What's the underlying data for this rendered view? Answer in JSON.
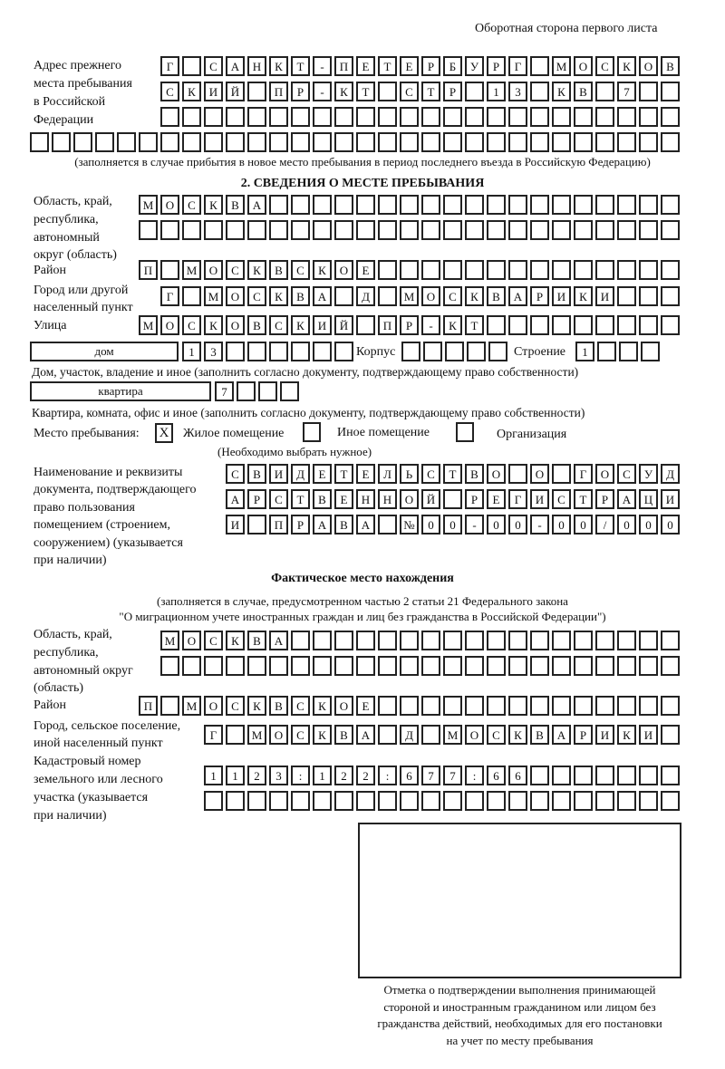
{
  "page_header": "Оборотная сторона первого листа",
  "previous_address": {
    "label": [
      "Адрес прежнего",
      "места пребывания",
      "в Российской",
      "Федерации"
    ],
    "rows": [
      [
        "Г",
        "",
        "С",
        "А",
        "Н",
        "К",
        "Т",
        "-",
        "П",
        "Е",
        "Т",
        "Е",
        "Р",
        "Б",
        "У",
        "Р",
        "Г",
        "",
        "М",
        "О",
        "С",
        "К",
        "О",
        "В"
      ],
      [
        "С",
        "К",
        "И",
        "Й",
        "",
        "П",
        "Р",
        "-",
        "К",
        "Т",
        "",
        "С",
        "Т",
        "Р",
        "",
        "1",
        "3",
        "",
        "К",
        "В",
        "",
        "7",
        "",
        ""
      ],
      [
        "",
        "",
        "",
        "",
        "",
        "",
        "",
        "",
        "",
        "",
        "",
        "",
        "",
        "",
        "",
        "",
        "",
        "",
        "",
        "",
        "",
        "",
        "",
        ""
      ],
      [
        "",
        "",
        "",
        "",
        "",
        "",
        "",
        "",
        "",
        "",
        "",
        "",
        "",
        "",
        "",
        "",
        "",
        "",
        "",
        "",
        "",
        "",
        "",
        "",
        "",
        "",
        "",
        "",
        "",
        ""
      ]
    ],
    "note": "(заполняется в случае прибытия в новое место пребывания в период последнего въезда в Российскую Федерацию)"
  },
  "section2": {
    "title": "2. СВЕДЕНИЯ О МЕСТЕ ПРЕБЫВАНИЯ",
    "region_label": [
      "Область, край,",
      "республика,",
      "автономный",
      "округ (область)"
    ],
    "region_rows": [
      [
        "М",
        "О",
        "С",
        "К",
        "В",
        "А",
        "",
        "",
        "",
        "",
        "",
        "",
        "",
        "",
        "",
        "",
        "",
        "",
        "",
        "",
        "",
        "",
        "",
        "",
        ""
      ],
      [
        "",
        "",
        "",
        "",
        "",
        "",
        "",
        "",
        "",
        "",
        "",
        "",
        "",
        "",
        "",
        "",
        "",
        "",
        "",
        "",
        "",
        "",
        "",
        "",
        ""
      ]
    ],
    "district_label": "Район",
    "district_row": [
      "П",
      "",
      "М",
      "О",
      "С",
      "К",
      "В",
      "С",
      "К",
      "О",
      "Е",
      "",
      "",
      "",
      "",
      "",
      "",
      "",
      "",
      "",
      "",
      "",
      "",
      "",
      ""
    ],
    "city_label": [
      "Город или другой",
      "населенный пункт"
    ],
    "city_row": [
      "Г",
      "",
      "М",
      "О",
      "С",
      "К",
      "В",
      "А",
      "",
      "Д",
      "",
      "М",
      "О",
      "С",
      "К",
      "В",
      "А",
      "Р",
      "И",
      "К",
      "И",
      "",
      "",
      ""
    ],
    "street_label": "Улица",
    "street_row": [
      "М",
      "О",
      "С",
      "К",
      "О",
      "В",
      "С",
      "К",
      "И",
      "Й",
      "",
      "П",
      "Р",
      "-",
      "К",
      "Т",
      "",
      "",
      "",
      "",
      "",
      "",
      "",
      "",
      ""
    ],
    "house_type": "дом",
    "house_cells": [
      "1",
      "3",
      "",
      "",
      "",
      "",
      "",
      ""
    ],
    "korpus_label": "Корпус",
    "korpus_cells": [
      "",
      "",
      "",
      "",
      ""
    ],
    "building_label": "Строение",
    "building_cells": [
      "1",
      "",
      "",
      ""
    ],
    "house_note": "Дом, участок, владение и иное (заполнить согласно документу, подтверждающему право собственности)",
    "apartment_type": "квартира",
    "apartment_cells": [
      "7",
      "",
      "",
      ""
    ],
    "apartment_note": "Квартира, комната, офис и иное (заполнить согласно документу, подтверждающему право собственности)",
    "stay_place_label": "Место пребывания:",
    "stay_options": [
      {
        "label": "Жилое помещение",
        "mark": "X"
      },
      {
        "label": "Иное помещение",
        "mark": ""
      },
      {
        "label": "Организация",
        "mark": ""
      }
    ],
    "stay_note": "(Необходимо выбрать нужное)",
    "document_label": [
      "Наименование и реквизиты",
      "документа, подтверждающего",
      "право пользования",
      "помещением (строением,",
      "сооружением) (указывается",
      "при наличии)"
    ],
    "document_rows": [
      [
        "С",
        "В",
        "И",
        "Д",
        "Е",
        "Т",
        "Е",
        "Л",
        "Ь",
        "С",
        "Т",
        "В",
        "О",
        "",
        "О",
        "",
        "Г",
        "О",
        "С",
        "У",
        "Д"
      ],
      [
        "А",
        "Р",
        "С",
        "Т",
        "В",
        "Е",
        "Н",
        "Н",
        "О",
        "Й",
        "",
        "Р",
        "Е",
        "Г",
        "И",
        "С",
        "Т",
        "Р",
        "А",
        "Ц",
        "И"
      ],
      [
        "И",
        "",
        "П",
        "Р",
        "А",
        "В",
        "А",
        "",
        "№",
        "0",
        "0",
        "-",
        "0",
        "0",
        "-",
        "0",
        "0",
        "/",
        "0",
        "0",
        "0"
      ]
    ]
  },
  "actual_location": {
    "title": "Фактическое место нахождения",
    "note1": "(заполняется в случае, предусмотренном частью 2 статьи 21 Федерального закона",
    "note2": "\"О миграционном учете иностранных граждан и лиц без гражданства в Российской Федерации\")",
    "region_label": [
      "Область, край,",
      "республика,",
      "автономный округ",
      "(область)"
    ],
    "region_rows": [
      [
        "М",
        "О",
        "С",
        "К",
        "В",
        "А",
        "",
        "",
        "",
        "",
        "",
        "",
        "",
        "",
        "",
        "",
        "",
        "",
        "",
        "",
        "",
        "",
        "",
        ""
      ],
      [
        "",
        "",
        "",
        "",
        "",
        "",
        "",
        "",
        "",
        "",
        "",
        "",
        "",
        "",
        "",
        "",
        "",
        "",
        "",
        "",
        "",
        "",
        "",
        ""
      ]
    ],
    "district_label": "Район",
    "district_row": [
      "П",
      "",
      "М",
      "О",
      "С",
      "К",
      "В",
      "С",
      "К",
      "О",
      "Е",
      "",
      "",
      "",
      "",
      "",
      "",
      "",
      "",
      "",
      "",
      "",
      "",
      "",
      ""
    ],
    "city_label": [
      "Город, сельское поселение,",
      "иной населенный пункт"
    ],
    "city_row": [
      "Г",
      "",
      "М",
      "О",
      "С",
      "К",
      "В",
      "А",
      "",
      "Д",
      "",
      "М",
      "О",
      "С",
      "К",
      "В",
      "А",
      "Р",
      "И",
      "К",
      "И",
      ""
    ],
    "cadastral_label": [
      "Кадастровый номер",
      "земельного или лесного",
      "участка (указывается",
      "при наличии)"
    ],
    "cadastral_rows": [
      [
        "1",
        "1",
        "2",
        "3",
        ":",
        "1",
        "2",
        "2",
        ":",
        "6",
        "7",
        "7",
        ":",
        "6",
        "6",
        "",
        "",
        "",
        "",
        "",
        "",
        ""
      ],
      [
        "",
        "",
        "",
        "",
        "",
        "",
        "",
        "",
        "",
        "",
        "",
        "",
        "",
        "",
        "",
        "",
        "",
        "",
        "",
        "",
        "",
        ""
      ]
    ]
  },
  "confirmation_caption": [
    "Отметка о подтверждении выполнения принимающей",
    "стороной и иностранным гражданином или лицом без",
    "гражданства действий, необходимых для его постановки",
    "на учет по месту пребывания"
  ]
}
